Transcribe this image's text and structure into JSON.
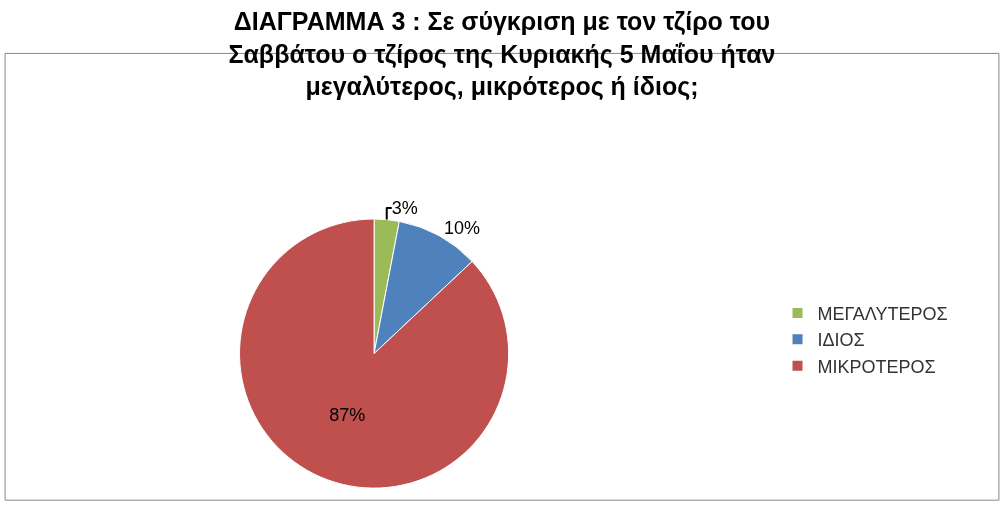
{
  "chart_data": {
    "type": "pie",
    "title": "ΔΙΑΓΡΑΜΜΑ 3 : Σε σύγκριση με τον τζίρο του Σαββάτου ο τζίρος της Κυριακής 5 Μαΐου ήταν μεγαλύτερος, μικρότερος ή ίδιος;",
    "categories": [
      "ΜΕΓΑΛΥΤΕΡΟΣ",
      "ΙΔΙΟΣ",
      "ΜΙΚΡΟΤΕΡΟΣ"
    ],
    "values": [
      3,
      10,
      87
    ],
    "value_labels": [
      "3%",
      "10%",
      "87%"
    ],
    "colors": [
      "#9bbb59",
      "#4f81bd",
      "#c0504d"
    ],
    "legend": "right"
  }
}
